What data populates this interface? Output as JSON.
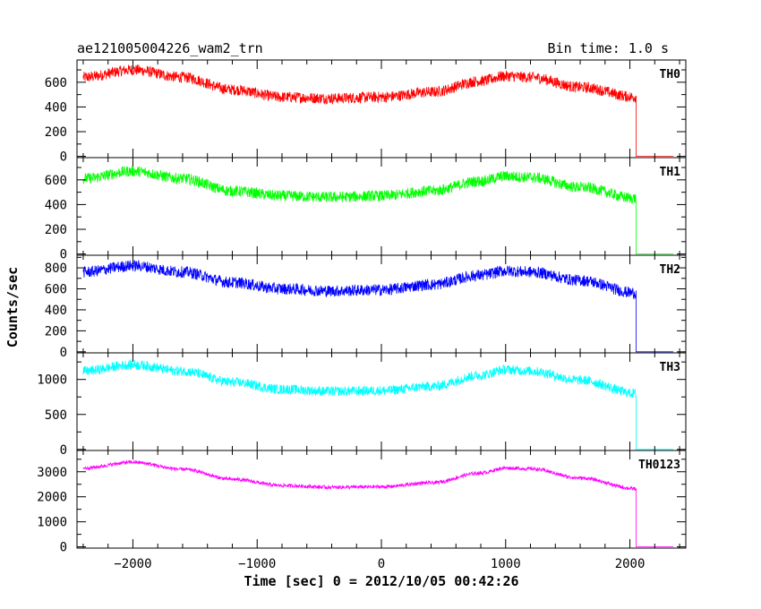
{
  "header": {
    "title": "ae121005004226_wam2_trn",
    "bin_time": "Bin time: 1.0 s"
  },
  "chart_data": {
    "type": "line",
    "xlabel": "Time [sec] 0 = 2012/10/05 00:42:26",
    "ylabel": "Counts/sec",
    "xlim": [
      -2450,
      2450
    ],
    "x_ticks": [
      -2000,
      -1000,
      0,
      1000,
      2000
    ],
    "x_tick_labels": [
      "−2000",
      "−1000",
      "0",
      "1000",
      "2000"
    ],
    "data_start": -2400,
    "data_end": 2050,
    "panels": [
      {
        "name": "TH0",
        "color": "#ff0000",
        "ylim": [
          -10,
          780
        ],
        "y_ticks": [
          0,
          200,
          400,
          600
        ],
        "y_tick_labels": [
          "0",
          "200",
          "400",
          "600"
        ],
        "noise": 45,
        "x": [
          -2400,
          -2000,
          -1600,
          -1200,
          -800,
          -400,
          0,
          400,
          800,
          1000,
          1200,
          1600,
          2050
        ],
        "y": [
          640,
          700,
          640,
          540,
          480,
          470,
          480,
          520,
          610,
          650,
          640,
          560,
          480
        ]
      },
      {
        "name": "TH1",
        "color": "#00ff00",
        "ylim": [
          -10,
          780
        ],
        "y_ticks": [
          0,
          200,
          400,
          600
        ],
        "y_tick_labels": [
          "0",
          "200",
          "400",
          "600"
        ],
        "noise": 45,
        "x": [
          -2400,
          -2000,
          -1600,
          -1200,
          -800,
          -400,
          0,
          400,
          800,
          1000,
          1200,
          1600,
          2050
        ],
        "y": [
          610,
          670,
          610,
          510,
          470,
          460,
          470,
          510,
          590,
          630,
          620,
          540,
          450
        ]
      },
      {
        "name": "TH2",
        "color": "#0000ff",
        "ylim": [
          -10,
          920
        ],
        "y_ticks": [
          0,
          200,
          400,
          600,
          800
        ],
        "y_tick_labels": [
          "0",
          "200",
          "400",
          "600",
          "800"
        ],
        "noise": 55,
        "x": [
          -2400,
          -2000,
          -1600,
          -1200,
          -800,
          -400,
          0,
          400,
          800,
          1000,
          1200,
          1600,
          2050
        ],
        "y": [
          760,
          820,
          760,
          660,
          600,
          580,
          590,
          640,
          730,
          770,
          760,
          680,
          560
        ]
      },
      {
        "name": "TH3",
        "color": "#00ffff",
        "ylim": [
          -15,
          1380
        ],
        "y_ticks": [
          0,
          500,
          1000
        ],
        "y_tick_labels": [
          "0",
          "500",
          "1000"
        ],
        "noise": 70,
        "x": [
          -2400,
          -2000,
          -1600,
          -1200,
          -800,
          -400,
          0,
          400,
          800,
          1000,
          1200,
          1600,
          2050
        ],
        "y": [
          1120,
          1210,
          1120,
          960,
          860,
          830,
          840,
          900,
          1060,
          1140,
          1120,
          990,
          800
        ]
      },
      {
        "name": "TH0123",
        "color": "#ff00ff",
        "ylim": [
          -50,
          3850
        ],
        "y_ticks": [
          0,
          1000,
          2000,
          3000
        ],
        "y_tick_labels": [
          "0",
          "1000",
          "2000",
          "3000"
        ],
        "noise": 70,
        "x": [
          -2400,
          -2000,
          -1600,
          -1200,
          -800,
          -400,
          0,
          400,
          800,
          1000,
          1200,
          1600,
          2050
        ],
        "y": [
          3150,
          3380,
          3100,
          2700,
          2450,
          2380,
          2400,
          2560,
          2950,
          3150,
          3120,
          2750,
          2320
        ]
      }
    ]
  }
}
